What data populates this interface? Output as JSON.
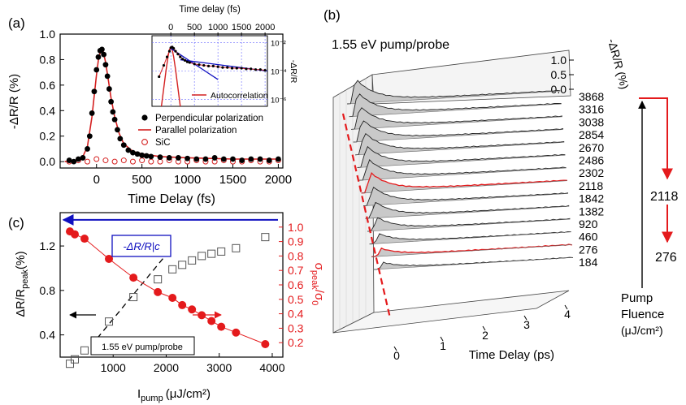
{
  "panel_labels": {
    "a": "(a)",
    "b": "(b)",
    "c": "(c)"
  },
  "chart_data": [
    {
      "id": "a",
      "type": "scatter",
      "xlabel": "Time Delay (fs)",
      "ylabel": "-ΔR/R (%)",
      "xlim": [
        -400,
        2050
      ],
      "ylim": [
        -0.05,
        1.0
      ],
      "xticks": [
        "0",
        "500",
        "1000",
        "1500",
        "2000"
      ],
      "yticks": [
        "0.0",
        "0.2",
        "0.4",
        "0.6",
        "0.8",
        "1.0"
      ],
      "legend": {
        "position": "bottom-right",
        "entries": [
          "Perpendicular polarization",
          "Parallel polarization",
          "SiC"
        ]
      },
      "colors": {
        "perpendicular": "#000000",
        "parallel": "#d42020",
        "sic": "#d42020"
      },
      "series": [
        {
          "name": "Perpendicular polarization",
          "x": [
            -300,
            -250,
            -200,
            -150,
            -100,
            -75,
            -50,
            -25,
            0,
            20,
            40,
            60,
            80,
            100,
            120,
            140,
            160,
            180,
            200,
            230,
            260,
            300,
            350,
            400,
            450,
            500,
            550,
            600,
            700,
            800,
            900,
            1000,
            1100,
            1200,
            1300,
            1400,
            1500,
            1600,
            1700,
            1800,
            1900,
            2000
          ],
          "y": [
            0.01,
            0.0,
            0.02,
            0.03,
            0.1,
            0.2,
            0.38,
            0.55,
            0.72,
            0.82,
            0.87,
            0.88,
            0.84,
            0.76,
            0.67,
            0.57,
            0.47,
            0.39,
            0.33,
            0.25,
            0.18,
            0.13,
            0.09,
            0.07,
            0.06,
            0.05,
            0.045,
            0.04,
            0.035,
            0.03,
            0.03,
            0.025,
            0.02,
            0.02,
            0.03,
            0.02,
            0.02,
            0.01,
            0.02,
            0.02,
            0.01,
            0.02
          ]
        },
        {
          "name": "Parallel polarization",
          "style": "line",
          "x": [
            -350,
            -200,
            -150,
            -100,
            -50,
            0,
            25,
            50,
            75,
            100,
            130,
            160,
            200,
            250,
            300,
            400,
            500,
            700,
            1000,
            1500,
            2000
          ],
          "y": [
            0.0,
            0.01,
            0.04,
            0.12,
            0.35,
            0.68,
            0.82,
            0.87,
            0.86,
            0.78,
            0.64,
            0.5,
            0.35,
            0.22,
            0.14,
            0.08,
            0.06,
            0.04,
            0.03,
            0.02,
            0.02
          ]
        },
        {
          "name": "SiC",
          "x": [
            -300,
            -200,
            -100,
            0,
            100,
            200,
            300,
            400,
            500,
            600,
            700,
            800,
            900,
            1000,
            1100,
            1200,
            1300,
            1400,
            1500,
            1600,
            1700,
            1800,
            1900,
            2000
          ],
          "y": [
            0.0,
            0.01,
            0.0,
            0.02,
            0.01,
            0.0,
            0.01,
            0.0,
            0.01,
            0.0,
            0.0,
            0.01,
            0.0,
            0.0,
            0.01,
            0.0,
            0.0,
            0.01,
            0.0,
            0.0,
            0.01,
            0.0,
            0.0,
            0.01
          ]
        }
      ],
      "inset": {
        "type": "line",
        "title": "Time delay (fs)",
        "xticks": [
          "0",
          "500",
          "1000",
          "1500",
          "2000"
        ],
        "xlim": [
          -400,
          2050
        ],
        "yscale": "log",
        "ylabel": "-ΔR/R",
        "yticks": [
          "10⁻²",
          "10⁻⁴",
          "10⁻⁶"
        ],
        "ylim_exponent": [
          -6.5,
          -1.5
        ],
        "legend": [
          "Autocorrelation"
        ],
        "data_x": [
          -250,
          -150,
          -80,
          -30,
          0,
          30,
          60,
          100,
          150,
          200,
          250,
          300,
          350,
          400,
          500,
          600,
          700,
          800,
          900,
          1000,
          1100,
          1200,
          1300,
          1400,
          1500,
          1600,
          1700,
          1800,
          1900,
          2000
        ],
        "data_exp": [
          -4.4,
          -3.6,
          -3.0,
          -2.6,
          -2.35,
          -2.3,
          -2.4,
          -2.6,
          -2.8,
          -3.0,
          -3.15,
          -3.25,
          -3.35,
          -3.4,
          -3.5,
          -3.55,
          -3.6,
          -3.65,
          -3.65,
          -3.7,
          -3.75,
          -3.75,
          -3.8,
          -3.8,
          -3.8,
          -3.85,
          -3.85,
          -3.9,
          -3.9,
          -3.95
        ],
        "autocorr_x": [
          -200,
          -150,
          -100,
          -60,
          -30,
          0,
          30,
          60,
          100,
          150,
          200
        ],
        "autocorr_exp": [
          -6.5,
          -5.2,
          -3.9,
          -3.0,
          -2.5,
          -2.3,
          -2.5,
          -3.0,
          -3.9,
          -5.2,
          -6.5
        ]
      }
    },
    {
      "id": "b",
      "type": "area",
      "title": "1.55 eV pump/probe",
      "xlabel": "Time Delay (ps)",
      "zlabel": "-ΔR/R (%)",
      "xticks": [
        "0",
        "1",
        "2",
        "3",
        "4"
      ],
      "zticks": [
        "0.0",
        "0.5",
        "1.0"
      ],
      "fluences": [
        "3868",
        "3316",
        "3038",
        "2854",
        "2670",
        "2486",
        "2302",
        "2118",
        "1842",
        "1382",
        "920",
        "460",
        "276",
        "184"
      ],
      "highlighted": [
        "2118",
        "276"
      ],
      "peaks": [
        0.6,
        0.58,
        0.56,
        0.55,
        0.54,
        0.52,
        0.5,
        0.49,
        0.46,
        0.4,
        0.33,
        0.24,
        0.19,
        0.16
      ],
      "annotation": {
        "top_value": "3868",
        "middle_value": "2118",
        "bottom_value": "276",
        "label": [
          "Pump",
          "Fluence",
          "(μJ/cm²)"
        ]
      }
    },
    {
      "id": "c",
      "type": "scatter",
      "xlabel": "I",
      "xlabel_sub": "pump",
      "xlabel_unit": "(μJ/cm²)",
      "ylabel": "ΔR/R",
      "ylabel_sub": "peak",
      "ylabel_unit": "(%)",
      "y2label": "σ",
      "y2label_sub": "peak",
      "y2label_tail": "/σ",
      "y2label_sub2": "0",
      "xlim": [
        0,
        4200
      ],
      "ylim": [
        0.2,
        1.5
      ],
      "y2lim": [
        0.1,
        1.1
      ],
      "xticks": [
        "1000",
        "2000",
        "3000",
        "4000"
      ],
      "yticks": [
        "0.4",
        "0.8",
        "1.2"
      ],
      "y2ticks": [
        "0.2",
        "0.3",
        "0.4",
        "0.5",
        "0.6",
        "0.7",
        "0.8",
        "0.9",
        "1.0"
      ],
      "legend_box": "-ΔR/R|c",
      "note": "1.55 eV pump/probe",
      "colors": {
        "sigma": "#e41a1c",
        "delta": "#555555",
        "ref_line": "#1010c0"
      },
      "series": [
        {
          "name": "ΔR/R peak",
          "x": [
            184,
            276,
            460,
            920,
            1382,
            1842,
            2118,
            2302,
            2486,
            2670,
            2854,
            3038,
            3316,
            3868
          ],
          "y": [
            0.14,
            0.18,
            0.26,
            0.52,
            0.74,
            0.9,
            0.99,
            1.03,
            1.07,
            1.11,
            1.13,
            1.15,
            1.18,
            1.28
          ]
        },
        {
          "name": "σ peak/σ0",
          "x": [
            184,
            276,
            460,
            920,
            1382,
            1842,
            2118,
            2302,
            2486,
            2670,
            2854,
            3038,
            3316,
            3868
          ],
          "y": [
            0.97,
            0.95,
            0.92,
            0.78,
            0.65,
            0.55,
            0.51,
            0.46,
            0.43,
            0.39,
            0.35,
            0.31,
            0.27,
            0.19
          ]
        }
      ],
      "reference_level_y2": 1.05,
      "dashed_fit": {
        "x": [
          700,
          2100
        ],
        "y": [
          0.37,
          1.18
        ]
      }
    }
  ]
}
